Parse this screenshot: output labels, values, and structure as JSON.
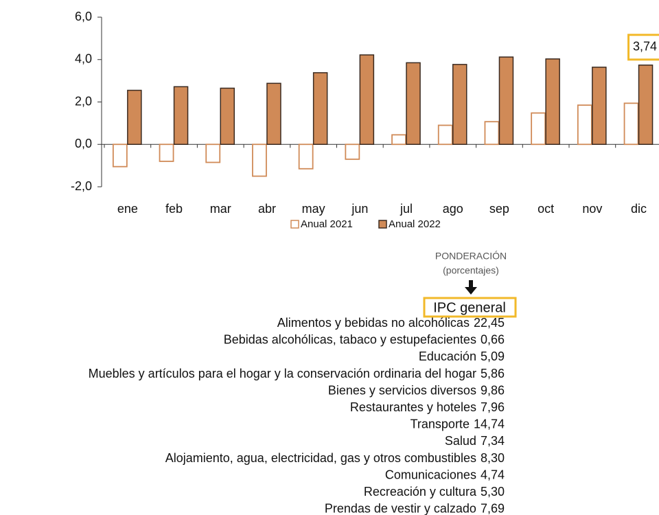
{
  "chart_data": {
    "type": "bar",
    "categories": [
      "ene",
      "feb",
      "mar",
      "abr",
      "may",
      "jun",
      "jul",
      "ago",
      "sep",
      "oct",
      "nov",
      "dic"
    ],
    "series": [
      {
        "name": "Anual 2021",
        "color": "#d08a57",
        "values": [
          -1.05,
          -0.8,
          -0.85,
          -1.5,
          -1.15,
          -0.7,
          0.45,
          0.9,
          1.07,
          1.48,
          1.85,
          1.94
        ]
      },
      {
        "name": "Anual 2022",
        "color": "#d08a57",
        "values": [
          2.55,
          2.72,
          2.65,
          2.88,
          3.38,
          4.22,
          3.85,
          3.77,
          4.12,
          4.03,
          3.64,
          3.74
        ],
        "value_labels": [
          null,
          null,
          null,
          null,
          null,
          null,
          null,
          null,
          null,
          null,
          null,
          "3,74"
        ]
      }
    ],
    "ylim": [
      -2,
      6
    ],
    "yticks": [
      {
        "value": -2,
        "label": "-2,0"
      },
      {
        "value": 0,
        "label": "0,0"
      },
      {
        "value": 2,
        "label": "2,0"
      },
      {
        "value": 4,
        "label": "4,0"
      },
      {
        "value": 6,
        "label": "6,0"
      }
    ],
    "legend": "bottom"
  },
  "ponderacion": {
    "title": "PONDERACIÓN",
    "subtitle": "(porcentajes)",
    "header": "IPC general",
    "rows": [
      {
        "label": "Alimentos y bebidas no alcohólicas",
        "value": "22,45"
      },
      {
        "label": "Bebidas alcohólicas, tabaco y estupefacientes",
        "value": "0,66"
      },
      {
        "label": "Educación",
        "value": "5,09"
      },
      {
        "label": "Muebles y artículos para el hogar y la conservación ordinaria del hogar",
        "value": "5,86"
      },
      {
        "label": "Bienes y servicios diversos",
        "value": "9,86"
      },
      {
        "label": "Restaurantes y hoteles",
        "value": "7,96"
      },
      {
        "label": "Transporte",
        "value": "14,74"
      },
      {
        "label": "Salud",
        "value": "7,34"
      },
      {
        "label": "Alojamiento, agua, electricidad, gas y otros combustibles",
        "value": "8,30"
      },
      {
        "label": "Comunicaciones",
        "value": "4,74"
      },
      {
        "label": "Recreación y cultura",
        "value": "5,30"
      },
      {
        "label": "Prendas de vestir y calzado",
        "value": "7,69"
      }
    ]
  }
}
